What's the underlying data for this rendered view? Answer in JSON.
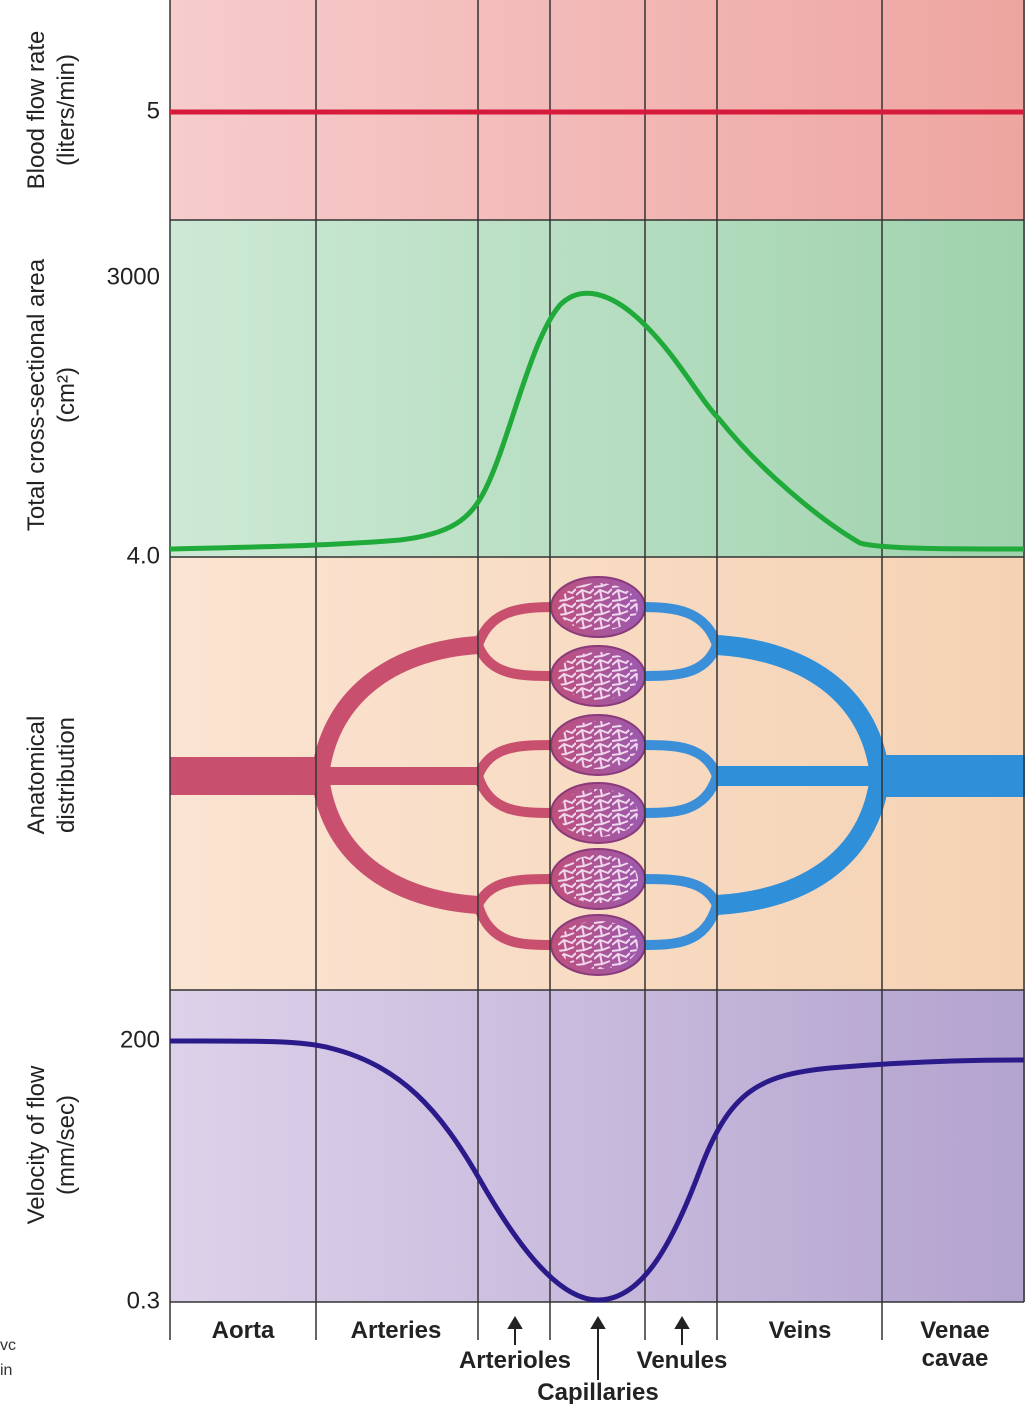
{
  "panels": [
    {
      "axis_label": [
        "Blood flow rate",
        "(liters/min)"
      ],
      "ticks": [
        "5"
      ]
    },
    {
      "axis_label": [
        "Total cross-sectional area",
        "(cm²)"
      ],
      "ticks": [
        "3000",
        "4.0"
      ]
    },
    {
      "axis_label": [
        "Anatomical",
        "distribution"
      ],
      "ticks": []
    },
    {
      "axis_label": [
        "Velocity of flow",
        "(mm/sec)"
      ],
      "ticks": [
        "200",
        "0.3"
      ]
    }
  ],
  "segments": [
    "Aorta",
    "Arteries",
    "Arterioles",
    "Capillaries",
    "Venules",
    "Veins",
    "Venae cavae"
  ],
  "cropped_text": [
    "vc",
    "in"
  ]
}
